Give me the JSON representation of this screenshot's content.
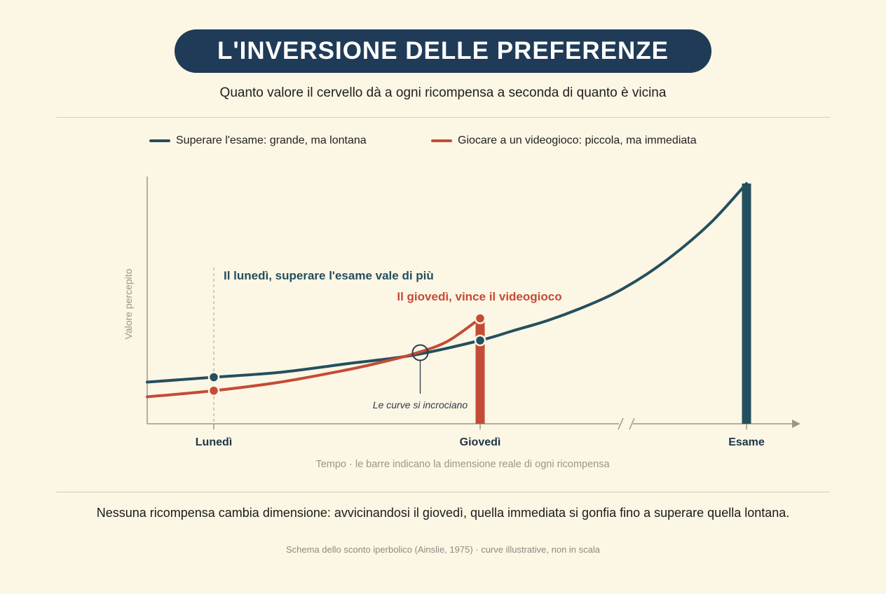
{
  "title": "L'INVERSIONE DELLE PREFERENZE",
  "subtitle": "Quanto valore il cervello dà a ogni ricompensa a seconda di quanto è vicina",
  "legend": [
    {
      "label": "Superare l'esame: grande, ma lontana",
      "color": "#244f5e"
    },
    {
      "label": "Giocare a un videogioco: piccola, ma immediata",
      "color": "#c44b36"
    }
  ],
  "takeaway": "Nessuna ricompensa cambia dimensione: avvicinandosi il giovedì, quella immediata si gonfia fino a superare quella lontana.",
  "source": "Schema dello sconto iperbolico (Ainslie, 1975) · curve illustrative, non in scala",
  "chart_data": {
    "type": "line",
    "ylabel": "Valore percepito",
    "xlabel": "Tempo · le barre indicano la dimensione reale di ogni ricompensa",
    "x_ticks": [
      {
        "label": "Lunedì",
        "x": 1
      },
      {
        "label": "Giovedì",
        "x": 5
      },
      {
        "label": "Esame",
        "x": 9
      }
    ],
    "x_range": [
      0,
      9.5
    ],
    "y_range": [
      0,
      100
    ],
    "axis_break": true,
    "series": [
      {
        "name": "Superare l'esame: grande, ma lontana",
        "color": "#244f5e",
        "x": [
          0,
          1,
          2,
          3,
          4,
          5,
          5.5,
          6,
          6.5,
          7,
          7.5,
          8,
          8.5,
          9
        ],
        "y": [
          17,
          19,
          21,
          24.5,
          28,
          34,
          38,
          42,
          47,
          53,
          61,
          71,
          83,
          98
        ],
        "reward_bar": {
          "x": 9,
          "value": 98
        },
        "marker_points": [
          {
            "x": 1,
            "y": 19
          },
          {
            "x": 5,
            "y": 34
          }
        ]
      },
      {
        "name": "Giocare a un videogioco: piccola, ma immediata",
        "color": "#c44b36",
        "x": [
          0,
          1,
          2,
          3,
          3.5,
          4,
          4.5,
          5
        ],
        "y": [
          11,
          13.5,
          17,
          22,
          25,
          28.5,
          33.5,
          43
        ],
        "reward_bar": {
          "x": 5,
          "value": 43
        },
        "marker_points": [
          {
            "x": 1,
            "y": 13.5
          },
          {
            "x": 5,
            "y": 43
          }
        ]
      }
    ],
    "crossover": {
      "x": 4.1,
      "y": 29,
      "label": "Le curve si incrociano"
    },
    "annotations": [
      {
        "text": "Il lunedì, superare l'esame vale di più",
        "color": "#244f5e",
        "x": 1
      },
      {
        "text": "Il giovedì, vince il videogioco",
        "color": "#c44b36",
        "x": 5
      }
    ]
  }
}
